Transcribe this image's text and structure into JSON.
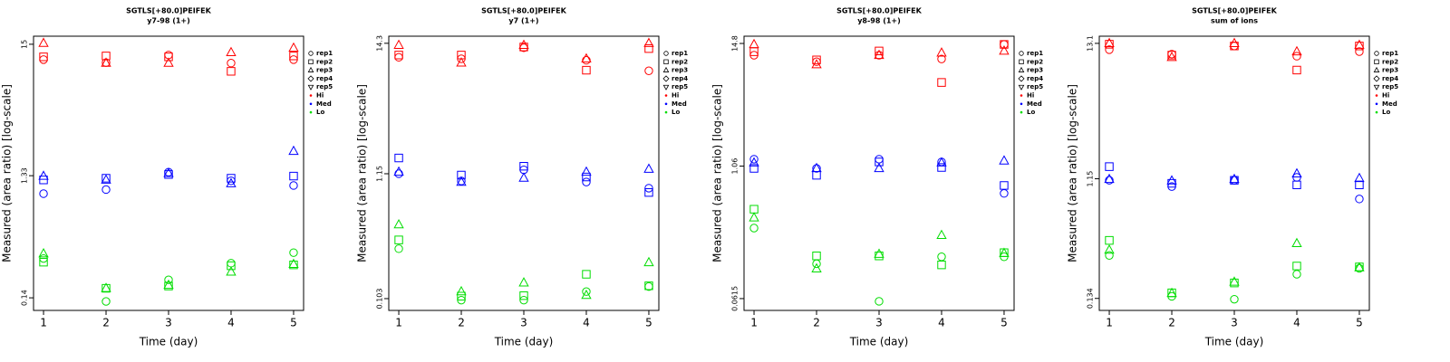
{
  "chart_data": [
    {
      "type": "scatter",
      "title": "SGTLS[+80.0]PEIFEK",
      "subtitle": "y7-98 (1+)",
      "x_label": "Time (day)",
      "y_label": "Measured (area ratio) [log-scale]",
      "log_y": true,
      "x": [
        1,
        2,
        3,
        4,
        5
      ],
      "xlim": [
        0.84,
        5.16
      ],
      "xticks": [
        1,
        2,
        3,
        4,
        5
      ],
      "ylim": [
        0.111,
        17.4
      ],
      "yticks": [
        0.14,
        1.33,
        15
      ],
      "groups": [
        {
          "name": "Hi",
          "color": "#ff0000",
          "series": [
            {
              "name": "rep1",
              "shape": "circle",
              "values": [
                11.3,
                10.7,
                12.3,
                10.6,
                11.3
              ]
            },
            {
              "name": "rep2",
              "shape": "square",
              "values": [
                11.9,
                12.1,
                11.9,
                9.1,
                12.1
              ]
            },
            {
              "name": "rep3",
              "shape": "triangle-up",
              "values": [
                15.3,
                10.6,
                10.6,
                12.9,
                14.0
              ]
            },
            {
              "name": "rep4",
              "shape": "diamond",
              "values": [
                null,
                null,
                null,
                null,
                null
              ]
            },
            {
              "name": "rep5",
              "shape": "triangle-down",
              "values": [
                null,
                null,
                null,
                null,
                null
              ]
            }
          ]
        },
        {
          "name": "Med",
          "color": "#0000ff",
          "series": [
            {
              "name": "rep1",
              "shape": "circle",
              "values": [
                0.955,
                1.03,
                1.42,
                1.21,
                1.11
              ]
            },
            {
              "name": "rep2",
              "shape": "square",
              "values": [
                1.23,
                1.27,
                1.36,
                1.27,
                1.32
              ]
            },
            {
              "name": "rep3",
              "shape": "triangle-up",
              "values": [
                1.32,
                1.23,
                1.39,
                1.15,
                2.09
              ]
            },
            {
              "name": "rep4",
              "shape": "diamond",
              "values": [
                null,
                null,
                null,
                null,
                null
              ]
            },
            {
              "name": "rep5",
              "shape": "triangle-down",
              "values": [
                null,
                null,
                null,
                null,
                null
              ]
            }
          ]
        },
        {
          "name": "Lo",
          "color": "#00dd00",
          "series": [
            {
              "name": "rep1",
              "shape": "circle",
              "values": [
                0.289,
                0.131,
                0.195,
                0.265,
                0.322
              ]
            },
            {
              "name": "rep2",
              "shape": "square",
              "values": [
                0.27,
                0.167,
                0.174,
                0.253,
                0.257
              ]
            },
            {
              "name": "rep3",
              "shape": "triangle-up",
              "values": [
                0.316,
                0.167,
                0.177,
                0.226,
                0.26
              ]
            },
            {
              "name": "rep4",
              "shape": "diamond",
              "values": [
                null,
                null,
                null,
                null,
                null
              ]
            },
            {
              "name": "rep5",
              "shape": "triangle-down",
              "values": [
                null,
                null,
                null,
                null,
                null
              ]
            }
          ]
        }
      ]
    },
    {
      "type": "scatter",
      "title": "SGTLS[+80.0]PEIFEK",
      "subtitle": "y7 (1+)",
      "x_label": "Time (day)",
      "y_label": "Measured (area ratio) [log-scale]",
      "log_y": true,
      "x": [
        1,
        2,
        3,
        4,
        5
      ],
      "xlim": [
        0.84,
        5.16
      ],
      "xticks": [
        1,
        2,
        3,
        4,
        5
      ],
      "ylim": [
        0.082,
        16.4
      ],
      "yticks": [
        0.103,
        1.15,
        14.3
      ],
      "groups": [
        {
          "name": "Hi",
          "color": "#ff0000",
          "series": [
            {
              "name": "rep1",
              "shape": "circle",
              "values": [
                10.9,
                10.6,
                13.1,
                10.3,
                8.4
              ]
            },
            {
              "name": "rep2",
              "shape": "square",
              "values": [
                11.4,
                11.4,
                13.3,
                8.5,
                12.9
              ]
            },
            {
              "name": "rep3",
              "shape": "triangle-up",
              "values": [
                13.8,
                9.8,
                13.8,
                10.6,
                14.3
              ]
            },
            {
              "name": "rep4",
              "shape": "diamond",
              "values": [
                null,
                null,
                null,
                null,
                null
              ]
            },
            {
              "name": "rep5",
              "shape": "triangle-down",
              "values": [
                null,
                null,
                null,
                null,
                null
              ]
            }
          ]
        },
        {
          "name": "Med",
          "color": "#0000ff",
          "series": [
            {
              "name": "rep1",
              "shape": "circle",
              "values": [
                1.15,
                1.0,
                1.24,
                0.98,
                0.87
              ]
            },
            {
              "name": "rep2",
              "shape": "square",
              "values": [
                1.56,
                1.12,
                1.33,
                1.08,
                0.8
              ]
            },
            {
              "name": "rep3",
              "shape": "triangle-up",
              "values": [
                1.19,
                0.98,
                1.06,
                1.19,
                1.26
              ]
            },
            {
              "name": "rep4",
              "shape": "diamond",
              "values": [
                null,
                null,
                null,
                null,
                null
              ]
            },
            {
              "name": "rep5",
              "shape": "triangle-down",
              "values": [
                null,
                null,
                null,
                null,
                null
              ]
            }
          ]
        },
        {
          "name": "Lo",
          "color": "#00dd00",
          "series": [
            {
              "name": "rep1",
              "shape": "circle",
              "values": [
                0.27,
                0.1,
                0.1,
                0.118,
                0.13
              ]
            },
            {
              "name": "rep2",
              "shape": "square",
              "values": [
                0.32,
                0.108,
                0.109,
                0.165,
                0.132
              ]
            },
            {
              "name": "rep3",
              "shape": "triangle-up",
              "values": [
                0.43,
                0.118,
                0.14,
                0.11,
                0.207
              ]
            },
            {
              "name": "rep4",
              "shape": "diamond",
              "values": [
                null,
                null,
                null,
                null,
                null
              ]
            },
            {
              "name": "rep5",
              "shape": "triangle-down",
              "values": [
                null,
                null,
                null,
                null,
                null
              ]
            }
          ]
        }
      ]
    },
    {
      "type": "scatter",
      "title": "SGTLS[+80.0]PEIFEK",
      "subtitle": "y8-98 (1+)",
      "x_label": "Time (day)",
      "y_label": "Measured (area ratio) [log-scale]",
      "log_y": true,
      "x": [
        1,
        2,
        3,
        4,
        5
      ],
      "xlim": [
        0.84,
        5.16
      ],
      "xticks": [
        1,
        2,
        3,
        4,
        5
      ],
      "ylim": [
        0.0477,
        17.3
      ],
      "yticks": [
        0.0615,
        1.06,
        14.8
      ],
      "groups": [
        {
          "name": "Hi",
          "color": "#ff0000",
          "series": [
            {
              "name": "rep1",
              "shape": "circle",
              "values": [
                11.5,
                10.0,
                11.5,
                10.6,
                14.5
              ]
            },
            {
              "name": "rep2",
              "shape": "square",
              "values": [
                12.4,
                10.4,
                12.6,
                6.4,
                14.5
              ]
            },
            {
              "name": "rep3",
              "shape": "triangle-up",
              "values": [
                14.5,
                9.4,
                11.5,
                12.1,
                12.6
              ]
            },
            {
              "name": "rep4",
              "shape": "diamond",
              "values": [
                null,
                null,
                null,
                null,
                null
              ]
            },
            {
              "name": "rep5",
              "shape": "triangle-down",
              "values": [
                null,
                null,
                null,
                null,
                null
              ]
            }
          ]
        },
        {
          "name": "Med",
          "color": "#0000ff",
          "series": [
            {
              "name": "rep1",
              "shape": "circle",
              "values": [
                1.23,
                1.01,
                1.23,
                1.16,
                0.59
              ]
            },
            {
              "name": "rep2",
              "shape": "square",
              "values": [
                1.01,
                0.87,
                1.16,
                1.03,
                0.7
              ]
            },
            {
              "name": "rep3",
              "shape": "triangle-up",
              "values": [
                1.14,
                1.01,
                1.01,
                1.14,
                1.19
              ]
            },
            {
              "name": "rep4",
              "shape": "diamond",
              "values": [
                null,
                null,
                null,
                null,
                null
              ]
            },
            {
              "name": "rep5",
              "shape": "triangle-down",
              "values": [
                null,
                null,
                null,
                null,
                null
              ]
            }
          ]
        },
        {
          "name": "Lo",
          "color": "#00dd00",
          "series": [
            {
              "name": "rep1",
              "shape": "circle",
              "values": [
                0.28,
                0.13,
                0.058,
                0.151,
                0.151
              ]
            },
            {
              "name": "rep2",
              "shape": "square",
              "values": [
                0.42,
                0.154,
                0.154,
                0.127,
                0.165
              ]
            },
            {
              "name": "rep3",
              "shape": "triangle-up",
              "values": [
                0.35,
                0.117,
                0.16,
                0.24,
                0.163
              ]
            },
            {
              "name": "rep4",
              "shape": "diamond",
              "values": [
                null,
                null,
                null,
                null,
                null
              ]
            },
            {
              "name": "rep5",
              "shape": "triangle-down",
              "values": [
                null,
                null,
                null,
                null,
                null
              ]
            }
          ]
        }
      ]
    },
    {
      "type": "scatter",
      "title": "SGTLS[+80.0]PEIFEK",
      "subtitle": "sum of ions",
      "x_label": "Time (day)",
      "y_label": "Measured (area ratio) [log-scale]",
      "log_y": true,
      "x": [
        1,
        2,
        3,
        4,
        5
      ],
      "xlim": [
        0.84,
        5.16
      ],
      "xticks": [
        1,
        2,
        3,
        4,
        5
      ],
      "ylim": [
        0.108,
        14.9
      ],
      "yticks": [
        0.134,
        1.15,
        13.1
      ],
      "groups": [
        {
          "name": "Hi",
          "color": "#ff0000",
          "series": [
            {
              "name": "rep1",
              "shape": "circle",
              "values": [
                11.7,
                10.8,
                12.5,
                10.4,
                11.3
              ]
            },
            {
              "name": "rep2",
              "shape": "square",
              "values": [
                12.9,
                10.6,
                12.5,
                8.1,
                12.5
              ]
            },
            {
              "name": "rep3",
              "shape": "triangle-up",
              "values": [
                13.1,
                10.2,
                13.1,
                11.3,
                12.7
              ]
            },
            {
              "name": "rep4",
              "shape": "diamond",
              "values": [
                null,
                null,
                null,
                null,
                null
              ]
            },
            {
              "name": "rep5",
              "shape": "triangle-down",
              "values": [
                null,
                null,
                null,
                null,
                null
              ]
            }
          ]
        },
        {
          "name": "Med",
          "color": "#0000ff",
          "series": [
            {
              "name": "rep1",
              "shape": "circle",
              "values": [
                1.12,
                1.0,
                1.12,
                1.18,
                0.8
              ]
            },
            {
              "name": "rep2",
              "shape": "square",
              "values": [
                1.43,
                1.06,
                1.12,
                1.03,
                1.03
              ]
            },
            {
              "name": "rep3",
              "shape": "triangle-up",
              "values": [
                1.14,
                1.11,
                1.14,
                1.26,
                1.16
              ]
            },
            {
              "name": "rep4",
              "shape": "diamond",
              "values": [
                null,
                null,
                null,
                null,
                null
              ]
            },
            {
              "name": "rep5",
              "shape": "triangle-down",
              "values": [
                null,
                null,
                null,
                null,
                null
              ]
            }
          ]
        },
        {
          "name": "Lo",
          "color": "#00dd00",
          "series": [
            {
              "name": "rep1",
              "shape": "circle",
              "values": [
                0.29,
                0.139,
                0.132,
                0.207,
                0.23
              ]
            },
            {
              "name": "rep2",
              "shape": "square",
              "values": [
                0.38,
                0.148,
                0.177,
                0.24,
                0.236
              ]
            },
            {
              "name": "rep3",
              "shape": "triangle-up",
              "values": [
                0.32,
                0.147,
                0.18,
                0.36,
                0.233
              ]
            },
            {
              "name": "rep4",
              "shape": "diamond",
              "values": [
                null,
                null,
                null,
                null,
                null
              ]
            },
            {
              "name": "rep5",
              "shape": "triangle-down",
              "values": [
                null,
                null,
                null,
                null,
                null
              ]
            }
          ]
        }
      ]
    }
  ]
}
